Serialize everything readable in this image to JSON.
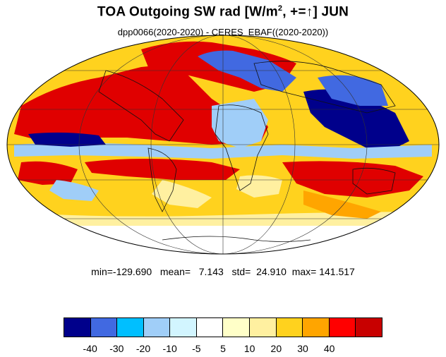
{
  "title": {
    "prefix": "TOA Outgoing SW rad [W/m",
    "sup": "2",
    "middle": ", +=",
    "arrow": "↑",
    "suffix": "] JUN"
  },
  "subtitle": "dpp0066(2020-2020) - CERES_EBAF((2020-2020))",
  "stats": {
    "min_label": "min=",
    "min": "-129.690",
    "mean_label": "mean=",
    "mean": "7.143",
    "std_label": "std=",
    "std": "24.910",
    "max_label": "max=",
    "max": "141.517"
  },
  "colorbar": {
    "colors": [
      "#00008b",
      "#4169e1",
      "#00bfff",
      "#a0cef8",
      "#d2f5ff",
      "#ffffff",
      "#ffffc8",
      "#fff0a0",
      "#ffd21e",
      "#ffa500",
      "#ff0000",
      "#c80000"
    ],
    "tick_labels": [
      "-40",
      "-30",
      "-20",
      "-10",
      "-5",
      "5",
      "10",
      "20",
      "30",
      "40"
    ]
  },
  "map": {
    "projection": "mollweide",
    "field": "TOA outgoing shortwave radiation difference",
    "month": "JUN",
    "grid": true,
    "coastlines": true,
    "palette": {
      "ocean_bg": "#ffd21e",
      "strong_pos": "#e00000",
      "mod_pos": "#ffa500",
      "light_pos": "#fff0a0",
      "neutral": "#ffffff",
      "light_neg": "#a0cef8",
      "mod_neg": "#4169e1",
      "strong_neg": "#00008b"
    }
  }
}
